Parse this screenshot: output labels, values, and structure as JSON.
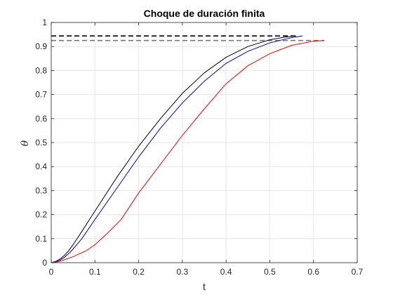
{
  "chart_data": {
    "type": "line",
    "title": "Choque de duración finita",
    "xlabel": "t",
    "ylabel": "θ",
    "xlim": [
      0,
      0.7
    ],
    "ylim": [
      0,
      1
    ],
    "xticks": [
      0,
      0.1,
      0.2,
      0.3,
      0.4,
      0.5,
      0.6,
      0.7
    ],
    "yticks": [
      0,
      0.1,
      0.2,
      0.3,
      0.4,
      0.5,
      0.6,
      0.7,
      0.8,
      0.9,
      1
    ],
    "xtick_labels": [
      "0",
      "0.1",
      "0.2",
      "0.3",
      "0.4",
      "0.5",
      "0.6",
      "0.7"
    ],
    "ytick_labels": [
      "0",
      "0.1",
      "0.2",
      "0.3",
      "0.4",
      "0.5",
      "0.6",
      "0.7",
      "0.8",
      "0.9",
      "1"
    ],
    "grid": true,
    "series": [
      {
        "color": "#000000",
        "x": [
          0,
          0.01,
          0.02,
          0.03,
          0.04,
          0.05,
          0.07,
          0.1,
          0.15,
          0.2,
          0.25,
          0.3,
          0.35,
          0.4,
          0.45,
          0.5,
          0.53,
          0.56
        ],
        "y": [
          0,
          0.005,
          0.015,
          0.03,
          0.05,
          0.075,
          0.13,
          0.215,
          0.355,
          0.485,
          0.6,
          0.705,
          0.79,
          0.855,
          0.9,
          0.928,
          0.938,
          0.944
        ]
      },
      {
        "color": "#0000cc",
        "x": [
          0,
          0.01,
          0.02,
          0.03,
          0.04,
          0.05,
          0.07,
          0.1,
          0.15,
          0.2,
          0.25,
          0.3,
          0.35,
          0.4,
          0.45,
          0.5,
          0.55,
          0.575
        ],
        "y": [
          0,
          0.003,
          0.01,
          0.022,
          0.038,
          0.057,
          0.1,
          0.18,
          0.31,
          0.44,
          0.56,
          0.665,
          0.755,
          0.83,
          0.88,
          0.915,
          0.937,
          0.944
        ]
      },
      {
        "color": "#ff0000",
        "x": [
          0,
          0.01,
          0.02,
          0.03,
          0.05,
          0.08,
          0.1,
          0.13,
          0.16,
          0.2,
          0.25,
          0.3,
          0.35,
          0.4,
          0.45,
          0.5,
          0.55,
          0.6,
          0.625
        ],
        "y": [
          0,
          0.002,
          0.006,
          0.012,
          0.025,
          0.05,
          0.075,
          0.125,
          0.18,
          0.29,
          0.41,
          0.53,
          0.64,
          0.745,
          0.82,
          0.87,
          0.905,
          0.922,
          0.925
        ]
      }
    ],
    "reference_lines": [
      {
        "y": 0.944,
        "x_start": 0,
        "x_end": 0.56,
        "style": "dashed",
        "color": "#000000"
      },
      {
        "y": 0.925,
        "x_start": 0,
        "x_end": 0.625,
        "style": "dashed",
        "color": "#777777"
      }
    ]
  }
}
